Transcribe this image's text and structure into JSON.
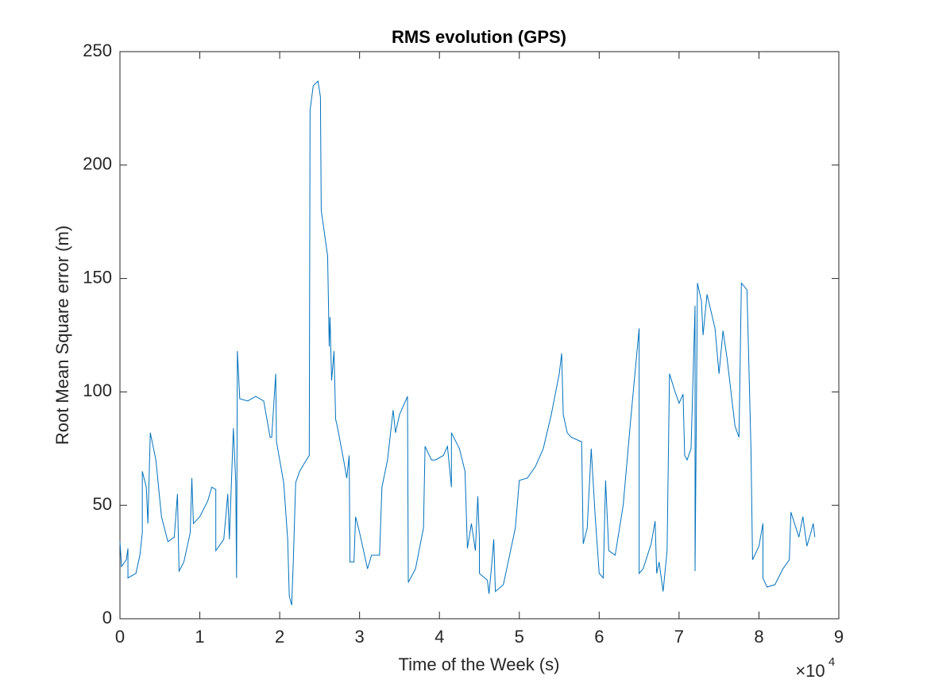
{
  "chart_data": {
    "type": "line",
    "title": "RMS evolution (GPS)",
    "x_label": "Time of the Week (s)",
    "y_label": "Root Mean Square error (m)",
    "x_multiplier": {
      "base": "×10",
      "exponent": "4"
    },
    "xlim": [
      0,
      9
    ],
    "ylim": [
      0,
      250
    ],
    "xticks": [
      0,
      1,
      2,
      3,
      4,
      5,
      6,
      7,
      8,
      9
    ],
    "yticks": [
      0,
      50,
      100,
      150,
      200,
      250
    ],
    "grid": false,
    "series": [
      {
        "color": "#0072bd",
        "x": [
          0,
          0.02,
          0.08,
          0.1,
          0.1,
          0.2,
          0.25,
          0.28,
          0.28,
          0.33,
          0.35,
          0.38,
          0.45,
          0.52,
          0.6,
          0.68,
          0.72,
          0.74,
          0.8,
          0.88,
          0.9,
          0.92,
          1.0,
          1.1,
          1.15,
          1.2,
          1.2,
          1.3,
          1.35,
          1.37,
          1.42,
          1.45,
          1.46,
          1.47,
          1.5,
          1.6,
          1.7,
          1.8,
          1.88,
          1.9,
          1.95,
          1.96,
          2.0,
          2.05,
          2.1,
          2.12,
          2.15,
          2.17,
          2.2,
          2.25,
          2.3,
          2.37,
          2.38,
          2.42,
          2.48,
          2.51,
          2.52,
          2.6,
          2.62,
          2.63,
          2.65,
          2.68,
          2.7,
          2.72,
          2.8,
          2.84,
          2.87,
          2.88,
          2.93,
          2.95,
          3.0,
          3.05,
          3.1,
          3.15,
          3.25,
          3.28,
          3.35,
          3.42,
          3.45,
          3.5,
          3.6,
          3.61,
          3.7,
          3.8,
          3.82,
          3.9,
          3.95,
          4.05,
          4.1,
          4.15,
          4.15,
          4.25,
          4.32,
          4.35,
          4.4,
          4.45,
          4.48,
          4.5,
          4.5,
          4.6,
          4.62,
          4.65,
          4.68,
          4.7,
          4.8,
          4.95,
          5.0,
          5.1,
          5.2,
          5.3,
          5.4,
          5.5,
          5.53,
          5.55,
          5.6,
          5.65,
          5.78,
          5.8,
          5.85,
          5.9,
          5.95,
          6.0,
          6.05,
          6.08,
          6.12,
          6.2,
          6.3,
          6.4,
          6.5,
          6.5,
          6.55,
          6.65,
          6.7,
          6.72,
          6.75,
          6.8,
          6.85,
          6.88,
          6.95,
          7.0,
          7.05,
          7.07,
          7.1,
          7.15,
          7.2,
          7.2,
          7.23,
          7.28,
          7.3,
          7.35,
          7.45,
          7.5,
          7.55,
          7.6,
          7.7,
          7.75,
          7.78,
          7.85,
          7.9,
          7.92,
          8.0,
          8.05,
          8.05,
          8.1,
          8.2,
          8.3,
          8.38,
          8.4,
          8.5,
          8.55,
          8.6,
          8.65,
          8.68,
          8.7
        ],
        "values": [
          34,
          23,
          26,
          31,
          18,
          20,
          28,
          38,
          65,
          58,
          42,
          82,
          70,
          45,
          34,
          36,
          55,
          21,
          25,
          38,
          62,
          42,
          45,
          52,
          58,
          57,
          30,
          35,
          55,
          35,
          84,
          60,
          18,
          118,
          97,
          96,
          98,
          96,
          80,
          80,
          108,
          78,
          70,
          60,
          35,
          10,
          6,
          25,
          60,
          65,
          68,
          72,
          224,
          235,
          237,
          230,
          180,
          160,
          120,
          133,
          105,
          118,
          88,
          85,
          70,
          62,
          72,
          25,
          25,
          45,
          38,
          30,
          22,
          28,
          28,
          58,
          70,
          92,
          82,
          90,
          98,
          16,
          22,
          40,
          76,
          70,
          70,
          72,
          76,
          58,
          82,
          75,
          65,
          31,
          42,
          30,
          54,
          35,
          20,
          17,
          11,
          22,
          35,
          12,
          15,
          40,
          61,
          62,
          67,
          75,
          90,
          108,
          117,
          90,
          82,
          80,
          78,
          33,
          40,
          75,
          45,
          20,
          18,
          61,
          30,
          28,
          50,
          90,
          128,
          20,
          22,
          33,
          43,
          20,
          25,
          12,
          30,
          108,
          100,
          95,
          99,
          72,
          70,
          75,
          138,
          21,
          148,
          140,
          125,
          143,
          128,
          108,
          127,
          115,
          85,
          80,
          148,
          145,
          75,
          26,
          32,
          42,
          18,
          14,
          15,
          22,
          26,
          47,
          36,
          45,
          32,
          38,
          42,
          36
        ]
      }
    ]
  }
}
